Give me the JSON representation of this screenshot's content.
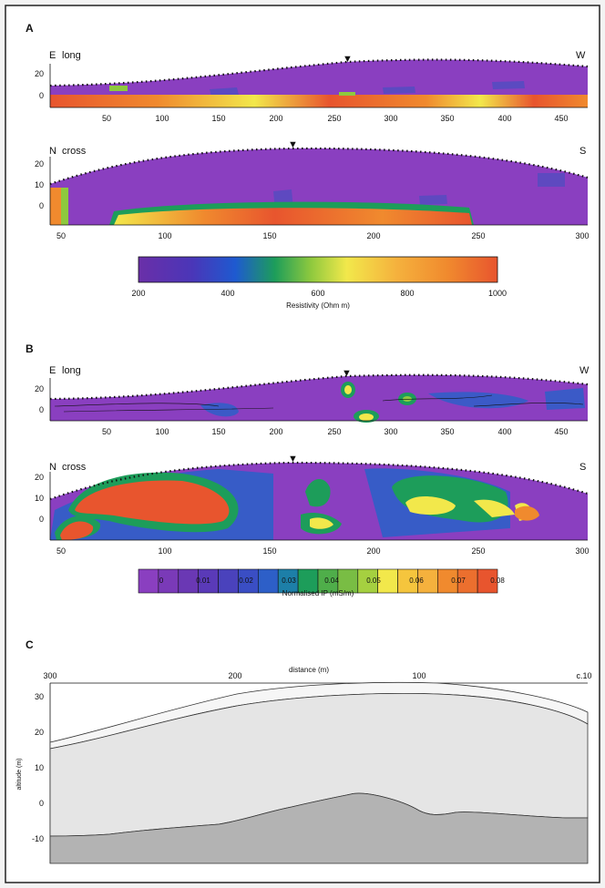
{
  "colors": {
    "page_bg": "#f3f3f3",
    "frame": "#222222",
    "section_bg": "#ffffff",
    "purple": "#8a3fc0",
    "yellow": "#f2e84b",
    "orange": "#f08a2e",
    "red": "#e8552e",
    "cross_light": "#e5e5e5",
    "cross_upper": "#f6f6f6",
    "cross_dark": "#b3b3b3"
  },
  "panel_a": {
    "label": "A",
    "long": {
      "left_end": "E",
      "right_end": "W",
      "profile": "long",
      "ytick_labels": [
        "20",
        "0"
      ],
      "xtick_labels": [
        "50",
        "100",
        "150",
        "200",
        "250",
        "300",
        "350",
        "400",
        "450"
      ],
      "marker": "▼"
    },
    "cross": {
      "left_end": "N",
      "right_end": "S",
      "profile": "cross",
      "ytick_labels": [
        "20",
        "10",
        "0"
      ],
      "xtick_labels": [
        "50",
        "100",
        "150",
        "200",
        "250",
        "300"
      ],
      "marker": "▼"
    },
    "colorbar": {
      "tick_labels": [
        "200",
        "400",
        "600",
        "800",
        "1000"
      ],
      "label": "Resistivity (Ohm m)"
    }
  },
  "panel_b": {
    "label": "B",
    "long": {
      "left_end": "E",
      "right_end": "W",
      "profile": "long",
      "ytick_labels": [
        "20",
        "0"
      ],
      "xtick_labels": [
        "50",
        "100",
        "150",
        "200",
        "250",
        "300",
        "350",
        "400",
        "450"
      ],
      "marker": "▼"
    },
    "cross": {
      "left_end": "N",
      "right_end": "S",
      "profile": "cross",
      "ytick_labels": [
        "20",
        "10",
        "0"
      ],
      "xtick_labels": [
        "50",
        "100",
        "150",
        "200",
        "250",
        "300"
      ],
      "marker": "▼"
    },
    "colorbar": {
      "tick_labels": [
        "0",
        "0.01",
        "0.02",
        "0.03",
        "0.04",
        "0.05",
        "0.06",
        "0.07",
        "0.08"
      ],
      "label": "Normalised IP (mS/m)"
    }
  },
  "panel_c": {
    "label": "C",
    "xlabel": "distance (m)",
    "ylabel": "altitude (m)",
    "xtick_labels": [
      "300",
      "200",
      "100",
      "c.10"
    ],
    "ytick_labels": [
      "30",
      "20",
      "10",
      "0",
      "-10"
    ]
  },
  "chart_data": [
    {
      "type": "heatmap",
      "panel": "A",
      "profile": "long",
      "x_range": [
        10,
        470
      ],
      "y_range": [
        -8,
        28
      ],
      "xticks": [
        50,
        100,
        150,
        200,
        250,
        300,
        350,
        400,
        450
      ],
      "yticks": [
        20,
        0
      ],
      "marker_x": 260,
      "surface_elevation": [
        [
          10,
          10
        ],
        [
          100,
          12
        ],
        [
          200,
          20
        ],
        [
          260,
          27
        ],
        [
          300,
          29
        ],
        [
          400,
          28
        ],
        [
          470,
          24
        ]
      ],
      "colorbar": {
        "variable": "Resistivity",
        "unit": "Ohm m",
        "range": [
          200,
          1000
        ],
        "ticks": [
          200,
          400,
          600,
          800,
          1000
        ]
      }
    },
    {
      "type": "heatmap",
      "panel": "A",
      "profile": "cross",
      "x_range": [
        40,
        300
      ],
      "y_range": [
        -8,
        28
      ],
      "xticks": [
        50,
        100,
        150,
        200,
        250,
        300
      ],
      "yticks": [
        20,
        10,
        0
      ],
      "marker_x": 160,
      "surface_elevation": [
        [
          40,
          10
        ],
        [
          80,
          18
        ],
        [
          120,
          24
        ],
        [
          160,
          27
        ],
        [
          200,
          26
        ],
        [
          250,
          22
        ],
        [
          300,
          15
        ]
      ],
      "colorbar": {
        "variable": "Resistivity",
        "unit": "Ohm m",
        "range": [
          200,
          1000
        ],
        "ticks": [
          200,
          400,
          600,
          800,
          1000
        ]
      }
    },
    {
      "type": "heatmap",
      "panel": "B",
      "profile": "long",
      "x_range": [
        10,
        470
      ],
      "y_range": [
        -8,
        28
      ],
      "xticks": [
        50,
        100,
        150,
        200,
        250,
        300,
        350,
        400,
        450
      ],
      "yticks": [
        20,
        0
      ],
      "marker_x": 260,
      "surface_elevation": [
        [
          10,
          10
        ],
        [
          100,
          12
        ],
        [
          200,
          20
        ],
        [
          260,
          27
        ],
        [
          300,
          29
        ],
        [
          400,
          28
        ],
        [
          470,
          24
        ]
      ],
      "colorbar": {
        "variable": "Normalised IP",
        "unit": "mS/m",
        "range": [
          0,
          0.08
        ],
        "ticks": [
          0,
          0.01,
          0.02,
          0.03,
          0.04,
          0.05,
          0.06,
          0.07,
          0.08
        ]
      }
    },
    {
      "type": "heatmap",
      "panel": "B",
      "profile": "cross",
      "x_range": [
        40,
        300
      ],
      "y_range": [
        -8,
        28
      ],
      "xticks": [
        50,
        100,
        150,
        200,
        250,
        300
      ],
      "yticks": [
        20,
        10,
        0
      ],
      "marker_x": 160,
      "surface_elevation": [
        [
          40,
          10
        ],
        [
          80,
          18
        ],
        [
          120,
          24
        ],
        [
          160,
          27
        ],
        [
          200,
          26
        ],
        [
          250,
          22
        ],
        [
          300,
          15
        ]
      ],
      "colorbar": {
        "variable": "Normalised IP",
        "unit": "mS/m",
        "range": [
          0,
          0.08
        ],
        "ticks": [
          0,
          0.01,
          0.02,
          0.03,
          0.04,
          0.05,
          0.06,
          0.07,
          0.08
        ]
      }
    },
    {
      "type": "area",
      "panel": "C",
      "x_range": [
        300,
        10
      ],
      "y_range": [
        -16,
        33
      ],
      "xticks": [
        300,
        200,
        100,
        10
      ],
      "yticks": [
        30,
        20,
        10,
        0,
        -10
      ],
      "series": [
        {
          "x": [
            300,
            250,
            200,
            150,
            100,
            50,
            10
          ],
          "y": [
            18,
            25,
            30,
            32,
            32,
            30,
            25
          ]
        },
        {
          "x": [
            300,
            250,
            200,
            150,
            100,
            50,
            10
          ],
          "y": [
            16,
            22,
            28,
            30,
            30,
            28,
            23
          ]
        },
        {
          "x": [
            300,
            250,
            200,
            150,
            130,
            100,
            50,
            10
          ],
          "y": [
            -9,
            -8,
            -3,
            1,
            0,
            -4,
            -3,
            -3
          ]
        }
      ]
    }
  ]
}
